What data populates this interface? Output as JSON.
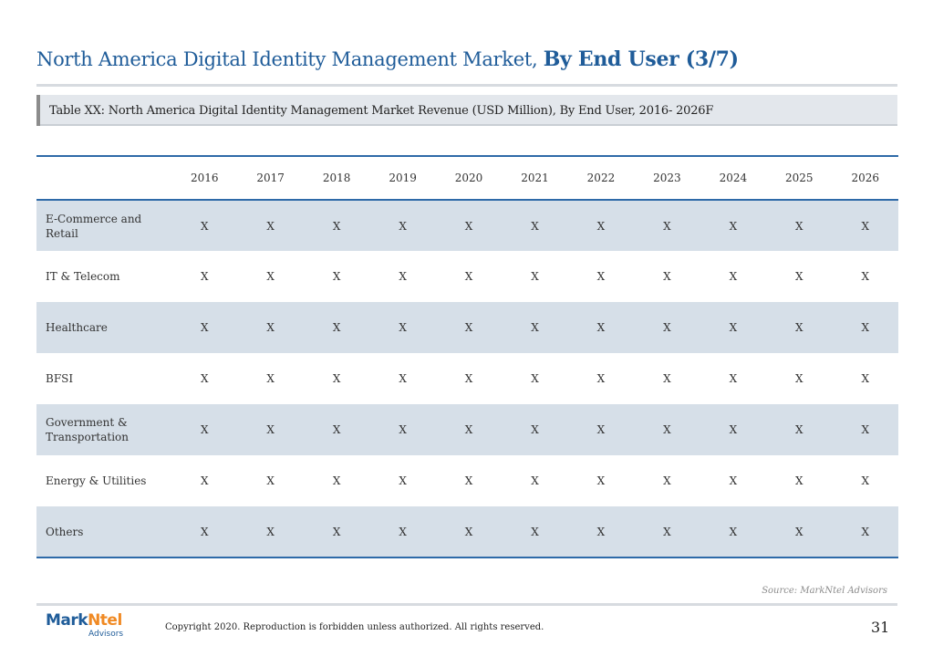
{
  "title": {
    "main": "North America Digital Identity Management Market, ",
    "emphasis": "By End User (3/7)"
  },
  "caption": "Table XX: North America Digital Identity Management Market Revenue (USD Million), By End User, 2016- 2026F",
  "table": {
    "years": [
      "2016",
      "2017",
      "2018",
      "2019",
      "2020",
      "2021",
      "2022",
      "2023",
      "2024",
      "2025",
      "2026"
    ],
    "rows": [
      {
        "label": "E-Commerce and Retail",
        "values": [
          "X",
          "X",
          "X",
          "X",
          "X",
          "X",
          "X",
          "X",
          "X",
          "X",
          "X"
        ]
      },
      {
        "label": "IT & Telecom",
        "values": [
          "X",
          "X",
          "X",
          "X",
          "X",
          "X",
          "X",
          "X",
          "X",
          "X",
          "X"
        ]
      },
      {
        "label": "Healthcare",
        "values": [
          "X",
          "X",
          "X",
          "X",
          "X",
          "X",
          "X",
          "X",
          "X",
          "X",
          "X"
        ]
      },
      {
        "label": "BFSI",
        "values": [
          "X",
          "X",
          "X",
          "X",
          "X",
          "X",
          "X",
          "X",
          "X",
          "X",
          "X"
        ]
      },
      {
        "label": "Government & Transportation",
        "values": [
          "X",
          "X",
          "X",
          "X",
          "X",
          "X",
          "X",
          "X",
          "X",
          "X",
          "X"
        ]
      },
      {
        "label": "Energy & Utilities",
        "values": [
          "X",
          "X",
          "X",
          "X",
          "X",
          "X",
          "X",
          "X",
          "X",
          "X",
          "X"
        ]
      },
      {
        "label": "Others",
        "values": [
          "X",
          "X",
          "X",
          "X",
          "X",
          "X",
          "X",
          "X",
          "X",
          "X",
          "X"
        ]
      }
    ]
  },
  "source": "Source: MarkNtel Advisors",
  "footer": {
    "logo_mark": "Mark",
    "logo_ntel": "Ntel",
    "logo_sub": "Advisors",
    "copyright": "Copyright 2020. Reproduction is forbidden unless authorized. All rights reserved.",
    "page_number": "31"
  },
  "colors": {
    "accent": "#1f5c99",
    "rule": "#2e6aa8",
    "row_shade": "#d6dfe8",
    "logo_orange": "#f08a24"
  }
}
